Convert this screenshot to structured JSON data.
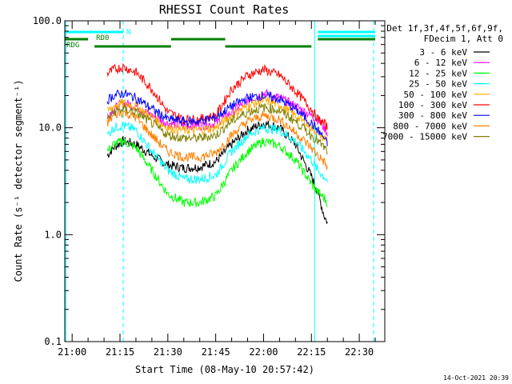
{
  "chart_data": {
    "type": "line",
    "title": "RHESSI Count Rates",
    "xlabel": "Start Time (08-May-10 20:57:42)",
    "ylabel": "Count Rate (s⁻¹ detector segment⁻¹)",
    "y_scale": "log",
    "ylim": [
      0.1,
      100.0
    ],
    "y_ticks": [
      "0.1",
      "1.0",
      "10.0",
      "100.0"
    ],
    "xlim": [
      "20:57:42",
      "22:38:00"
    ],
    "x_ticks": [
      "21:00",
      "21:15",
      "21:30",
      "21:45",
      "22:00",
      "22:15",
      "22:30"
    ],
    "legend_header": [
      "Det 1f,3f,4f,5f,6f,9f,",
      "FDecim 1, Att 0"
    ],
    "legend_position": "right, outside plot",
    "footer_date": "14-Oct-2021 20:39",
    "x": [
      "21:11:00",
      "21:13:00",
      "21:16:00",
      "21:20:00",
      "21:25:00",
      "21:30:00",
      "21:35:00",
      "21:40:00",
      "21:45:00",
      "21:50:00",
      "21:55:00",
      "22:00:00",
      "22:05:00",
      "22:10:00",
      "22:15:00",
      "22:17:00",
      "22:19:00",
      "22:20:00"
    ],
    "series": [
      {
        "name": "3 - 6 keV",
        "color": "#000000",
        "values": [
          5.5,
          6.5,
          7.5,
          7.0,
          5.5,
          4.5,
          4.2,
          4.3,
          4.8,
          7.0,
          9.5,
          11.0,
          10.0,
          7.0,
          3.5,
          2.5,
          1.5,
          1.3
        ]
      },
      {
        "name": "6 - 12 keV",
        "color": "#ff00ff",
        "values": [
          13.0,
          15.0,
          17.0,
          16.0,
          13.0,
          11.0,
          10.5,
          10.5,
          11.0,
          14.0,
          18.0,
          21.0,
          19.0,
          16.0,
          13.0,
          12.0,
          10.0,
          9.0
        ]
      },
      {
        "name": "12 - 25 keV",
        "color": "#00ff00",
        "values": [
          6.0,
          7.0,
          7.5,
          6.5,
          4.0,
          2.4,
          2.0,
          2.0,
          2.3,
          4.0,
          6.0,
          7.5,
          6.8,
          5.0,
          3.0,
          2.5,
          2.2,
          2.0
        ]
      },
      {
        "name": "25 - 50 keV",
        "color": "#00ffff",
        "values": [
          8.5,
          10.0,
          10.5,
          9.5,
          6.0,
          4.0,
          3.3,
          3.3,
          3.6,
          6.0,
          8.5,
          10.0,
          9.5,
          7.5,
          5.0,
          4.0,
          3.5,
          3.2
        ]
      },
      {
        "name": "50 - 100 keV",
        "color": "#ffaa00",
        "values": [
          14.0,
          16.0,
          17.0,
          16.0,
          12.5,
          10.0,
          9.5,
          9.5,
          10.0,
          13.0,
          16.0,
          18.0,
          16.5,
          13.0,
          10.0,
          9.0,
          8.0,
          7.5
        ]
      },
      {
        "name": "100 - 300 keV",
        "color": "#ff0000",
        "values": [
          32.0,
          35.0,
          37.0,
          33.0,
          23.0,
          14.0,
          12.0,
          12.0,
          13.0,
          23.0,
          31.0,
          35.0,
          31.0,
          22.0,
          15.0,
          12.0,
          11.0,
          10.0
        ]
      },
      {
        "name": "300 - 800 keV",
        "color": "#0000ff",
        "values": [
          18.0,
          20.0,
          21.0,
          19.0,
          15.0,
          12.0,
          11.5,
          11.5,
          12.5,
          16.0,
          19.0,
          20.0,
          18.5,
          15.0,
          11.0,
          9.5,
          8.0,
          7.0
        ]
      },
      {
        "name": "800 - 7000 keV",
        "color": "#ff8000",
        "values": [
          11.0,
          13.0,
          14.0,
          12.5,
          8.5,
          6.0,
          5.3,
          5.3,
          5.8,
          8.5,
          11.5,
          13.0,
          12.0,
          9.0,
          6.5,
          5.5,
          4.8,
          4.2
        ]
      },
      {
        "name": "7000 - 15000 keV",
        "color": "#808000",
        "values": [
          12.0,
          14.0,
          15.0,
          14.0,
          11.0,
          8.5,
          8.0,
          8.0,
          8.5,
          11.5,
          14.0,
          15.5,
          14.5,
          11.5,
          8.5,
          7.5,
          6.5,
          6.0
        ]
      }
    ],
    "segment_bars": [
      {
        "label": "N",
        "color": "#00ffff",
        "intervals": [
          [
            "20:57:42",
            "21:16:00"
          ],
          [
            "22:17:00",
            "22:35:00"
          ]
        ]
      },
      {
        "label": "",
        "color": "#00ffff",
        "intervals": [
          [
            "22:17:00",
            "22:35:00"
          ]
        ]
      },
      {
        "label": "RD0",
        "color": "#008000",
        "intervals": [
          [
            "20:57:42",
            "21:05:00"
          ],
          [
            "21:31:00",
            "21:48:00"
          ],
          [
            "22:17:00",
            "22:35:00"
          ]
        ]
      },
      {
        "label": "RDG",
        "color": "#008000",
        "intervals": [
          [
            "21:07:00",
            "21:31:00"
          ],
          [
            "21:48:00",
            "22:15:00"
          ]
        ]
      }
    ],
    "vertical_markers": [
      {
        "time": "20:58:00",
        "style": "solid",
        "color": "#00ffff"
      },
      {
        "time": "21:16:00",
        "style": "dashed",
        "color": "#00ffff"
      },
      {
        "time": "22:16:00",
        "style": "solid",
        "color": "#00ffff"
      },
      {
        "time": "22:34:30",
        "style": "dashed",
        "color": "#00ffff"
      }
    ]
  }
}
